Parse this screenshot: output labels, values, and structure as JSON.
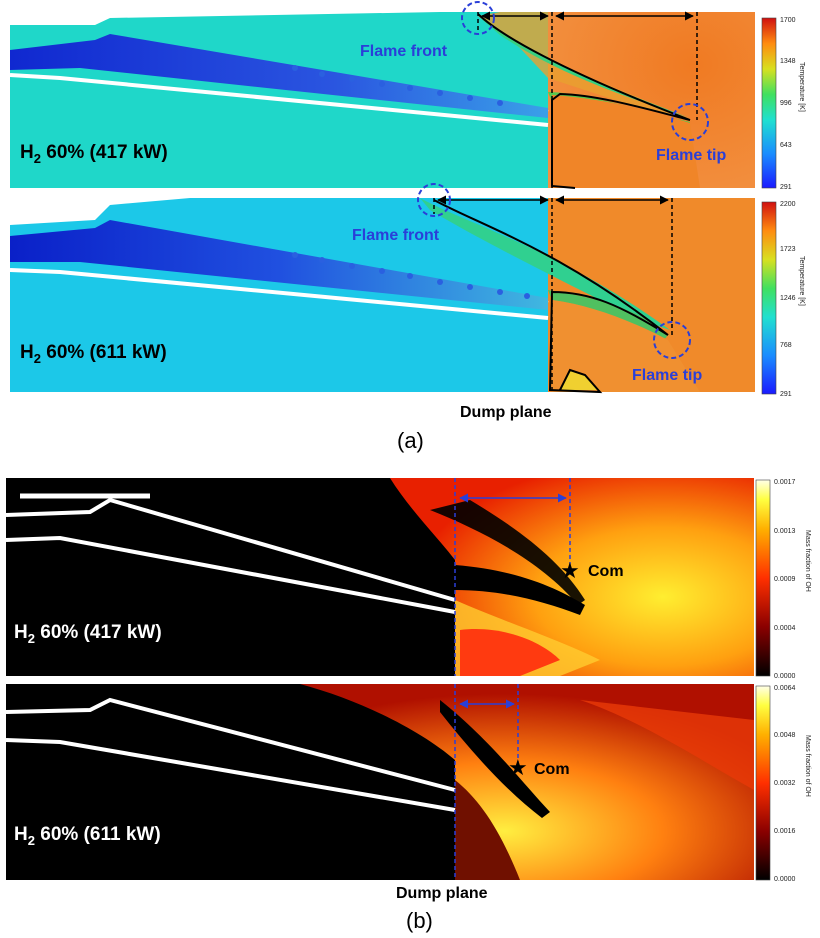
{
  "panel_a": {
    "top": {
      "case_label": "H",
      "case_sub": "2",
      "case_rest": " 60% (417 kW)",
      "flame_front": "Flame front",
      "flame_tip": "Flame tip",
      "colorbar": {
        "title": "Temperature [K]",
        "ticks": [
          "1700",
          "1348",
          "996",
          "643",
          "291"
        ]
      }
    },
    "bottom": {
      "case_label": "H",
      "case_sub": "2",
      "case_rest": " 60% (611 kW)",
      "flame_front": "Flame front",
      "flame_tip": "Flame tip",
      "colorbar": {
        "title": "Temperature [K]",
        "ticks": [
          "2200",
          "1723",
          "1246",
          "768",
          "291"
        ]
      }
    },
    "dump_plane": "Dump plane",
    "caption": "(a)"
  },
  "panel_b": {
    "top": {
      "case_label": "H",
      "case_sub": "2",
      "case_rest": " 60% (417 kW)",
      "com_label": "Com",
      "colorbar": {
        "title": "Mass fraction of OH",
        "ticks": [
          "0.0017",
          "0.0013",
          "0.0009",
          "0.0004",
          "0.0000"
        ]
      }
    },
    "bottom": {
      "case_label": "H",
      "case_sub": "2",
      "case_rest": " 60% (611 kW)",
      "com_label": "Com",
      "colorbar": {
        "title": "Mass fraction of OH",
        "ticks": [
          "0.0064",
          "0.0048",
          "0.0032",
          "0.0016",
          "0.0000"
        ]
      }
    },
    "dump_plane": "Dump plane",
    "caption": "(b)"
  },
  "colors": {
    "annotation_blue": "#2a3fd8",
    "hot": "#ee7a1e",
    "cold": "#1e3ad6",
    "ambient": "#1fd7cf",
    "oh_dark": "#000000",
    "oh_bright": "#ffff40"
  }
}
